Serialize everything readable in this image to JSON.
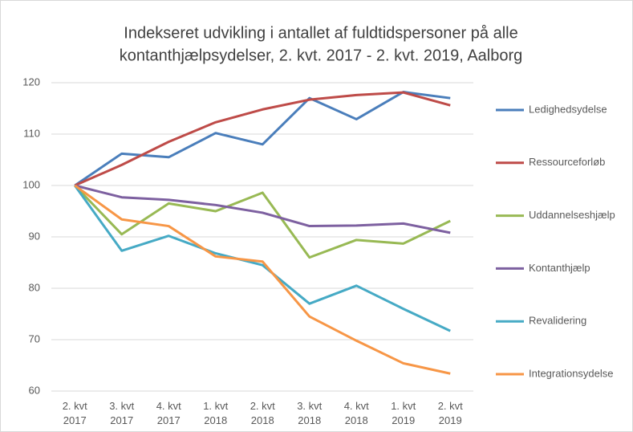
{
  "chart_data": {
    "type": "line",
    "title": [
      "Indekseret udvikling i antallet af fuldtidspersoner på alle",
      "kontanthjælpsydelser, 2. kvt. 2017 - 2. kvt. 2019, Aalborg"
    ],
    "categories": [
      "2. kvt\n2017",
      "3. kvt\n2017",
      "4. kvt\n2017",
      "1. kvt\n2018",
      "2. kvt\n2018",
      "3. kvt\n2018",
      "4. kvt\n2018",
      "1. kvt\n2019",
      "2. kvt\n2019"
    ],
    "series": [
      {
        "name": "Ledighedsydelse",
        "color": "#4a7ebb",
        "values": [
          100,
          106.2,
          105.5,
          110.2,
          108,
          117,
          112.9,
          118.2,
          117
        ]
      },
      {
        "name": "Ressourceforløb",
        "color": "#be4b48",
        "values": [
          100,
          104,
          108.5,
          112.3,
          114.8,
          116.7,
          117.6,
          118.1,
          115.6
        ]
      },
      {
        "name": "Uddannelseshjælp",
        "color": "#98b954",
        "values": [
          100,
          90.5,
          96.5,
          95,
          98.6,
          86,
          89.4,
          88.7,
          93.1
        ]
      },
      {
        "name": "Kontanthjælp",
        "color": "#7d60a0",
        "values": [
          100,
          97.7,
          97.2,
          96.2,
          94.7,
          92.1,
          92.2,
          92.6,
          90.8
        ]
      },
      {
        "name": "Revalidering",
        "color": "#46aac5",
        "values": [
          100,
          87.3,
          90.2,
          86.8,
          84.5,
          77,
          80.5,
          76,
          71.7
        ]
      },
      {
        "name": "Integrationsydelse",
        "color": "#f79646",
        "values": [
          100,
          93.4,
          92.1,
          86.2,
          85.2,
          74.5,
          69.8,
          65.4,
          63.4
        ]
      }
    ],
    "ylim": [
      60,
      120
    ],
    "yticks": [
      60,
      70,
      80,
      90,
      100,
      110,
      120
    ],
    "grid": true,
    "legend": "right"
  }
}
